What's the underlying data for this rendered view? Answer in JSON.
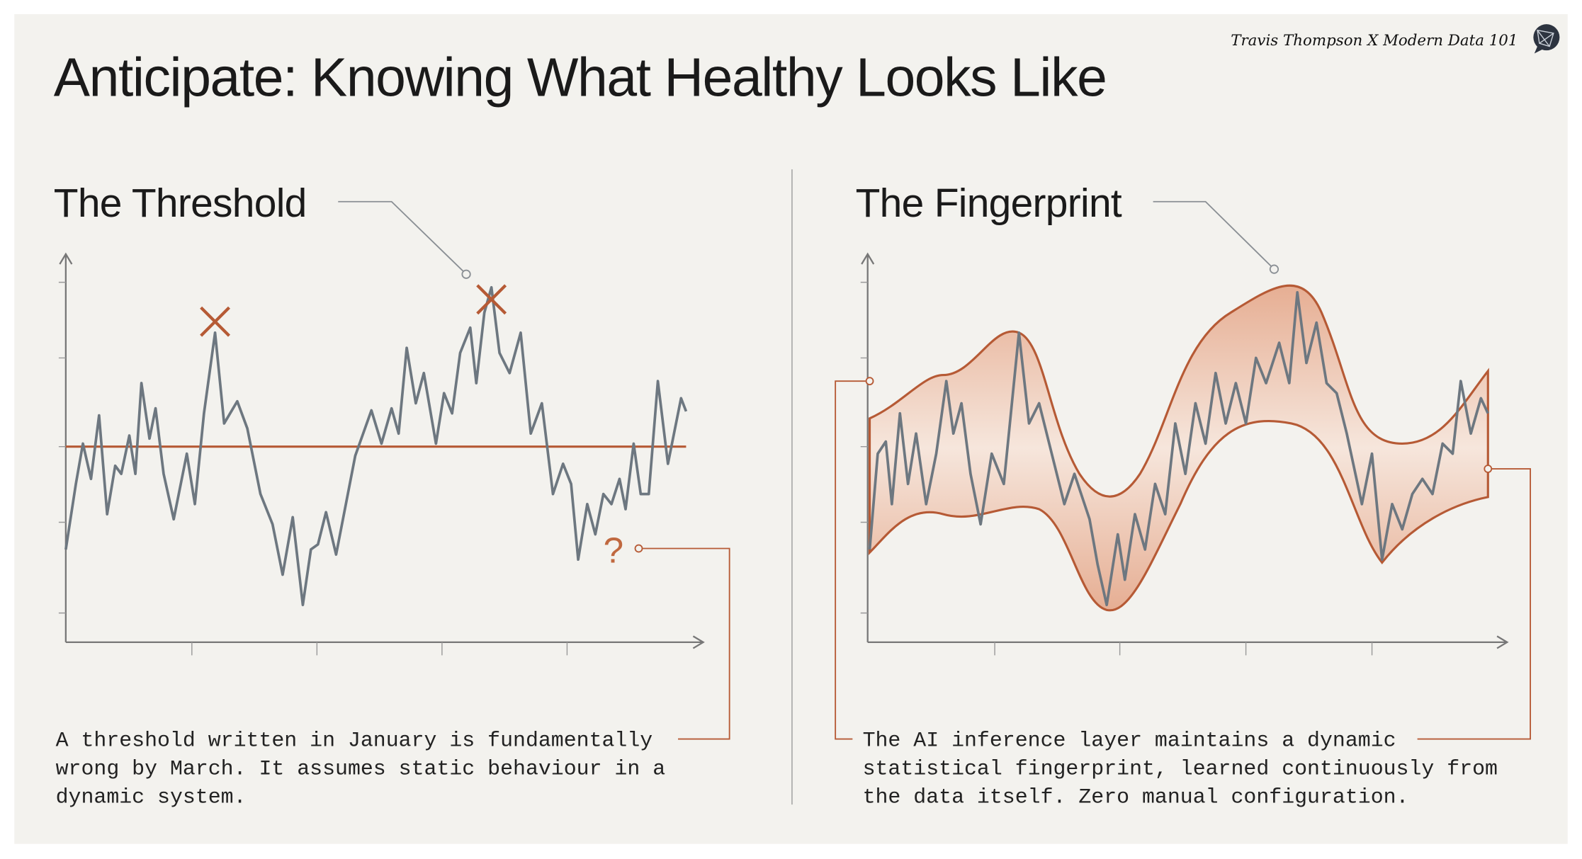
{
  "header": {
    "title": "Anticipate: Knowing What Healthy Looks Like",
    "attribution": "Travis Thompson X Modern Data 101",
    "logo_icon": "globe-chat-icon"
  },
  "left_panel": {
    "heading": "The Threshold",
    "question_mark": "?",
    "description_lines": [
      "A threshold written in January is fundamentally",
      "wrong by March. It assumes static behaviour in a",
      "dynamic system."
    ]
  },
  "right_panel": {
    "heading": "The Fingerprint",
    "description_lines": [
      "The AI inference layer maintains a dynamic",
      "statistical fingerprint, learned continuously from",
      "the data itself. Zero manual configuration."
    ]
  },
  "colors": {
    "background": "#f3f2ee",
    "accent": "#b65a35",
    "series": "#6d7780",
    "band": "#e8b49a"
  }
}
